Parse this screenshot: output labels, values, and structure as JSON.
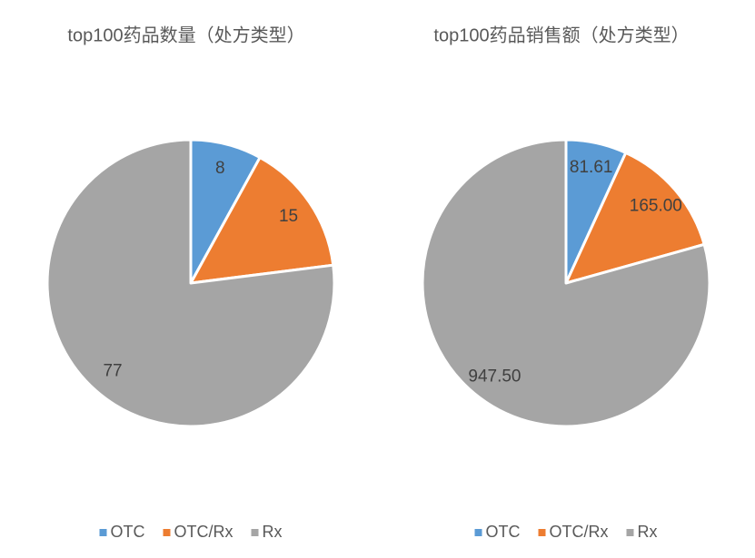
{
  "chart_data": [
    {
      "type": "pie",
      "title": "top100药品数量（处方类型）",
      "categories": [
        "OTC",
        "OTC/Rx",
        "Rx"
      ],
      "values": [
        8,
        15,
        77
      ],
      "colors": [
        "#5b9bd5",
        "#ed7d31",
        "#a5a5a5"
      ],
      "legend": "bottom"
    },
    {
      "type": "pie",
      "title": "top100药品销售额（处方类型）",
      "categories": [
        "OTC",
        "OTC/Rx",
        "Rx"
      ],
      "values": [
        81.61,
        165,
        947.5
      ],
      "value_labels": [
        "81.61",
        "165.00",
        "947.50"
      ],
      "colors": [
        "#5b9bd5",
        "#ed7d31",
        "#a5a5a5"
      ],
      "legend": "bottom"
    }
  ]
}
